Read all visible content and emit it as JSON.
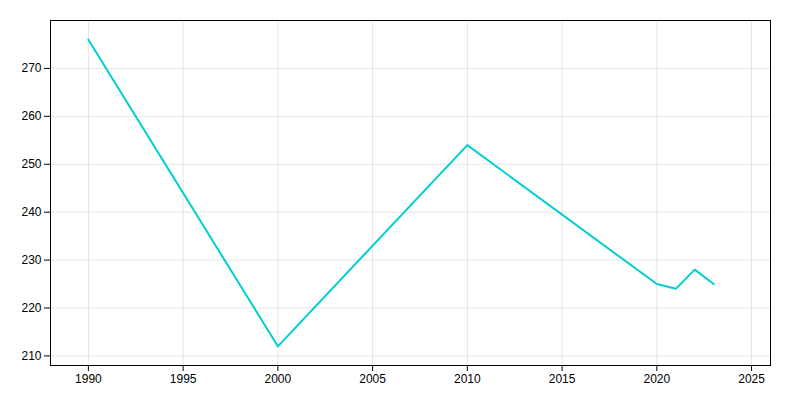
{
  "chart_data": {
    "type": "line",
    "x": [
      1990,
      2000,
      2010,
      2020,
      2021,
      2022,
      2023
    ],
    "values": [
      276,
      212,
      254,
      225,
      224,
      228,
      225
    ],
    "color": "#00CED1",
    "xlim": [
      1988,
      2026
    ],
    "xticks": [
      1990,
      1995,
      2000,
      2005,
      2010,
      2015,
      2020,
      2025
    ],
    "ylim": [
      208,
      280
    ],
    "yticks": [
      210,
      220,
      230,
      240,
      250,
      260,
      270
    ],
    "grid": true
  }
}
